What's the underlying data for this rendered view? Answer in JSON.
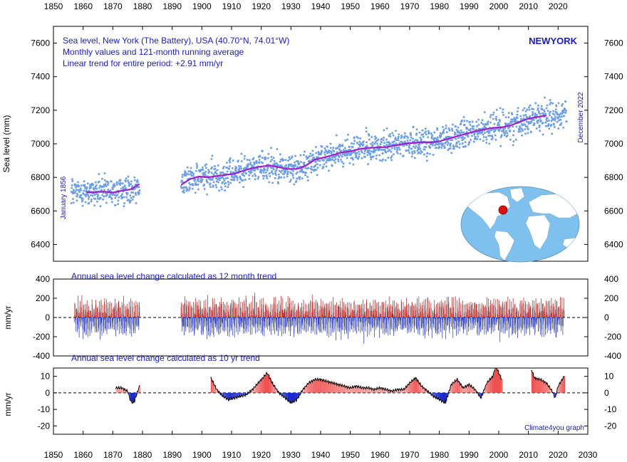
{
  "chart_data": [
    {
      "type": "scatter",
      "panel": "sea-level",
      "title_lines": [
        "Sea level, New York (The Battery), USA (40.70°N, 74.01°W)",
        "Monthly values and 121-month running average",
        "Linear trend for entire period: +2.91 mm/yr"
      ],
      "station_label": "NEWYORK",
      "start_label": "January 1856",
      "end_label": "December 2022",
      "ylabel": "Sea level (mm)",
      "xlim": [
        1850,
        2030
      ],
      "ylim": [
        6300,
        7700
      ],
      "yticks": [
        6400,
        6600,
        6800,
        7000,
        7200,
        7400,
        7600
      ],
      "marker_color": "#6a9ee8",
      "line_color": "#a020c8",
      "series": [
        {
          "name": "Monthly values",
          "segments": [
            {
              "x_start": 1856.0,
              "x_end": 1879.0
            },
            {
              "x_start": 1893.0,
              "x_end": 2022.9
            }
          ]
        },
        {
          "name": "121-month running average",
          "x": [
            1861,
            1864,
            1867,
            1870,
            1873,
            1876,
            1879,
            1893,
            1896,
            1899,
            1902,
            1905,
            1908,
            1911,
            1914,
            1917,
            1920,
            1923,
            1926,
            1929,
            1932,
            1935,
            1938,
            1941,
            1944,
            1947,
            1950,
            1953,
            1956,
            1959,
            1962,
            1965,
            1968,
            1971,
            1974,
            1977,
            1980,
            1983,
            1986,
            1989,
            1992,
            1995,
            1998,
            2001,
            2004,
            2007,
            2010,
            2013,
            2016
          ],
          "y": [
            6712,
            6712,
            6715,
            6710,
            6720,
            6728,
            6760,
            6755,
            6790,
            6805,
            6800,
            6808,
            6815,
            6822,
            6840,
            6855,
            6865,
            6870,
            6860,
            6850,
            6850,
            6870,
            6905,
            6918,
            6932,
            6948,
            6955,
            6968,
            6975,
            6978,
            6980,
            6990,
            7000,
            7005,
            7010,
            7008,
            7015,
            7030,
            7045,
            7060,
            7075,
            7085,
            7095,
            7098,
            7110,
            7130,
            7150,
            7160,
            7168
          ]
        }
      ]
    },
    {
      "type": "bar",
      "panel": "annual-change-12-month",
      "title": "Annual sea level change calculated as 12 month trend",
      "ylabel": "mm/yr",
      "xlim": [
        1850,
        2030
      ],
      "ylim": [
        -400,
        400
      ],
      "yticks": [
        -400,
        -200,
        0,
        200,
        400
      ],
      "positive_color": "#b01818",
      "negative_color": "#1a2ad0",
      "series": [
        {
          "name": "12 month trend",
          "segments": [
            {
              "x_start": 1857,
              "x_end": 1879
            },
            {
              "x_start": 1893,
              "x_end": 2022
            }
          ]
        }
      ]
    },
    {
      "type": "area",
      "panel": "annual-change-10-yr",
      "title": "Annual sea level change calculated as 10 yr trend",
      "ylabel": "mm/yr",
      "xlim": [
        1850,
        2030
      ],
      "ylim": [
        -25,
        15
      ],
      "yticks": [
        -20,
        -10,
        0,
        10
      ],
      "xticks": [
        1850,
        1860,
        1870,
        1880,
        1890,
        1900,
        1910,
        1920,
        1930,
        1940,
        1950,
        1960,
        1970,
        1980,
        1990,
        2000,
        2010,
        2020,
        2030
      ],
      "top_xticks": [
        1850,
        1860,
        1870,
        1880,
        1890,
        1900,
        1910,
        1920,
        1930,
        1940,
        1950,
        1960,
        1970,
        1980,
        1990,
        2000,
        2010,
        2020
      ],
      "positive_color": "#f05050",
      "negative_color": "#1a2ad0",
      "credit": "Climate4you graph",
      "series": [
        {
          "name": "10 yr trend",
          "segments": [
            {
              "x": [
                1871,
                1873,
                1875,
                1876,
                1877,
                1878,
                1879
              ],
              "y": [
                3,
                3,
                1,
                -5,
                -6,
                -1,
                4
              ]
            },
            {
              "x": [
                1903,
                1905,
                1907,
                1909,
                1911,
                1913,
                1915,
                1917,
                1919,
                1921,
                1922,
                1924,
                1926,
                1928,
                1930,
                1932,
                1934,
                1936,
                1938,
                1940,
                1942,
                1944,
                1946,
                1948,
                1950,
                1952,
                1954,
                1956,
                1958,
                1960,
                1962,
                1964,
                1966,
                1968,
                1970,
                1972,
                1974,
                1976,
                1978,
                1980,
                1982,
                1984,
                1986,
                1988,
                1990,
                1992,
                1994,
                1996,
                1998,
                1999,
                2001
              ],
              "y": [
                9,
                2,
                -2,
                -4,
                -3,
                -2,
                -1,
                2,
                6,
                10,
                12,
                5,
                0,
                -3,
                -6,
                -4,
                2,
                6,
                8,
                8,
                7,
                6,
                5,
                4,
                3,
                4,
                3,
                3,
                2,
                3,
                2,
                1,
                2,
                2,
                6,
                9,
                4,
                1,
                -2,
                -4,
                -6,
                5,
                8,
                3,
                5,
                2,
                -3,
                6,
                10,
                16,
                8
              ]
            },
            {
              "x": [
                2011,
                2012,
                2014,
                2016,
                2018,
                2019,
                2020,
                2022
              ],
              "y": [
                14,
                9,
                8,
                6,
                1,
                -3,
                4,
                10
              ]
            }
          ]
        }
      ]
    }
  ],
  "inset_map": {
    "name": "world-map-inset",
    "marker_color": "#e01010"
  }
}
